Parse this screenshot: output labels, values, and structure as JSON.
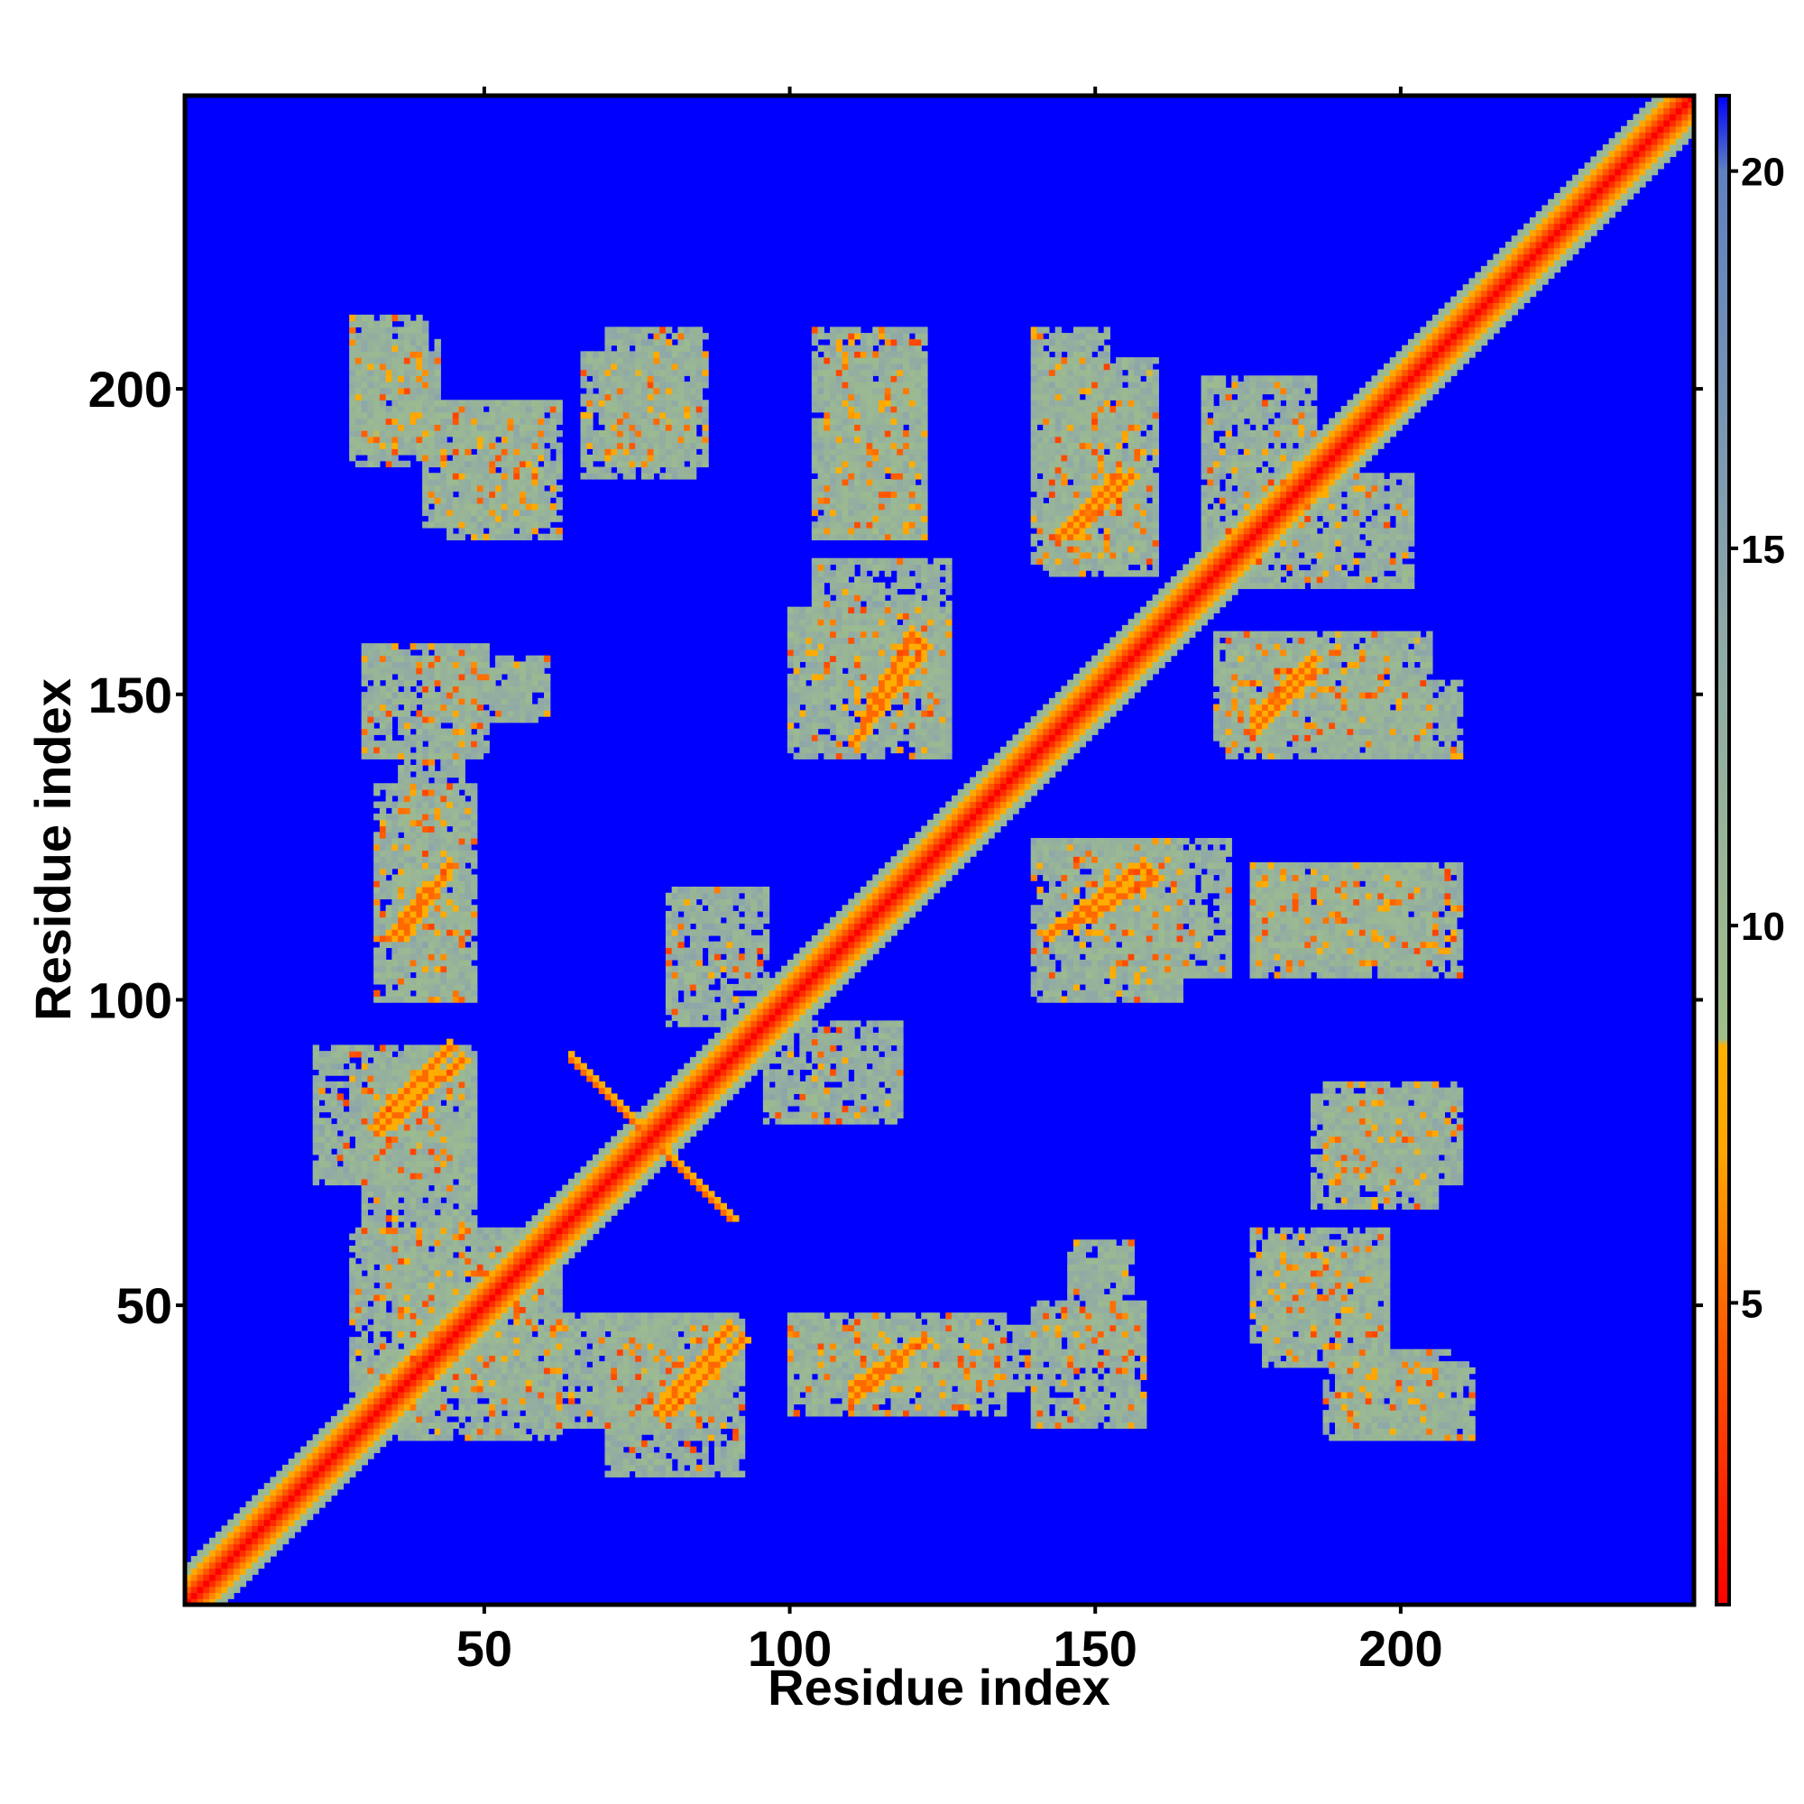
{
  "chart_data": {
    "type": "heatmap",
    "title": "",
    "xlabel": "Residue index",
    "ylabel": "Residue index",
    "xlim": [
      1,
      248
    ],
    "ylim": [
      1,
      248
    ],
    "x_ticks": [
      50,
      100,
      150,
      200
    ],
    "y_ticks": [
      50,
      100,
      150,
      200
    ],
    "colorbar": {
      "range": [
        1,
        21
      ],
      "ticks": [
        5,
        10,
        15,
        20
      ],
      "stops": [
        {
          "value": 1,
          "color": "#ff0000"
        },
        {
          "value": 4.5,
          "color": "#ff5a00"
        },
        {
          "value": 7,
          "color": "#ffa500"
        },
        {
          "value": 8.4,
          "color": "#ffb000"
        },
        {
          "value": 8.5,
          "color": "#9fbf8a"
        },
        {
          "value": 14,
          "color": "#8fa8a8"
        },
        {
          "value": 20,
          "color": "#6080c0"
        },
        {
          "value": 21,
          "color": "#0000ff"
        }
      ]
    },
    "background_value": 21,
    "diagonal_band": {
      "center_value": 1,
      "halfwidth_residues": 6,
      "edge_value": 11
    },
    "contact_regions": [
      {
        "x": [
          28,
          42
        ],
        "y": [
          188,
          208
        ],
        "value": 12
      },
      {
        "x": [
          40,
          58
        ],
        "y": [
          178,
          198
        ],
        "value": 12
      },
      {
        "x": [
          66,
          84
        ],
        "y": [
          186,
          206
        ],
        "value": 12
      },
      {
        "x": [
          106,
          122
        ],
        "y": [
          176,
          206
        ],
        "value": 12
      },
      {
        "x": [
          142,
          160
        ],
        "y": [
          170,
          205
        ],
        "value": 12
      },
      {
        "x": [
          168,
          186
        ],
        "y": [
          175,
          202
        ],
        "value": 12
      },
      {
        "x": [
          30,
          50
        ],
        "y": [
          140,
          158
        ],
        "value": 12
      },
      {
        "x": [
          36,
          46
        ],
        "y": [
          100,
          140
        ],
        "value": 12
      },
      {
        "x": [
          22,
          48
        ],
        "y": [
          70,
          92
        ],
        "value": 12
      },
      {
        "x": [
          28,
          58
        ],
        "y": [
          36,
          62
        ],
        "value": 12
      },
      {
        "x": [
          60,
          90
        ],
        "y": [
          30,
          48
        ],
        "value": 12
      },
      {
        "x": [
          100,
          135
        ],
        "y": [
          32,
          48
        ],
        "value": 12
      },
      {
        "x": [
          146,
          156
        ],
        "y": [
          40,
          60
        ],
        "value": 12
      },
      {
        "x": [
          176,
          198
        ],
        "y": [
          44,
          62
        ],
        "value": 12
      },
      {
        "x": [
          190,
          212
        ],
        "y": [
          28,
          40
        ],
        "value": 12
      },
      {
        "x": [
          188,
          210
        ],
        "y": [
          70,
          86
        ],
        "value": 12
      },
      {
        "x": [
          100,
          126
        ],
        "y": [
          140,
          164
        ],
        "value": 12
      },
      {
        "x": [
          150,
          172
        ],
        "y": [
          104,
          126
        ],
        "value": 12
      },
      {
        "x": [
          176,
          210
        ],
        "y": [
          104,
          122
        ],
        "value": 12
      },
      {
        "x": [
          172,
          200
        ],
        "y": [
          140,
          158
        ],
        "value": 12
      },
      {
        "x": [
          200,
          210
        ],
        "y": [
          140,
          152
        ],
        "value": 12
      },
      {
        "x": [
          80,
          96
        ],
        "y": [
          96,
          118
        ],
        "value": 12
      }
    ],
    "contact_lines": [
      {
        "from": [
          32,
          80
        ],
        "to": [
          44,
          92
        ],
        "value": 5
      },
      {
        "from": [
          66,
          88
        ],
        "to": [
          90,
          64
        ],
        "value": 5
      },
      {
        "from": [
          78,
          32
        ],
        "to": [
          90,
          46
        ],
        "value": 5
      },
      {
        "from": [
          110,
          36
        ],
        "to": [
          122,
          44
        ],
        "value": 5
      },
      {
        "from": [
          142,
          110
        ],
        "to": [
          158,
          122
        ],
        "value": 5
      },
      {
        "from": [
          176,
          146
        ],
        "to": [
          186,
          156
        ],
        "value": 5
      },
      {
        "from": [
          112,
          146
        ],
        "to": [
          120,
          160
        ],
        "value": 5
      },
      {
        "from": [
          144,
          176
        ],
        "to": [
          154,
          186
        ],
        "value": 5
      },
      {
        "from": [
          34,
          110
        ],
        "to": [
          40,
          118
        ],
        "value": 5
      },
      {
        "from": [
          24,
          26
        ],
        "to": [
          32,
          34
        ],
        "value": 5
      }
    ]
  }
}
